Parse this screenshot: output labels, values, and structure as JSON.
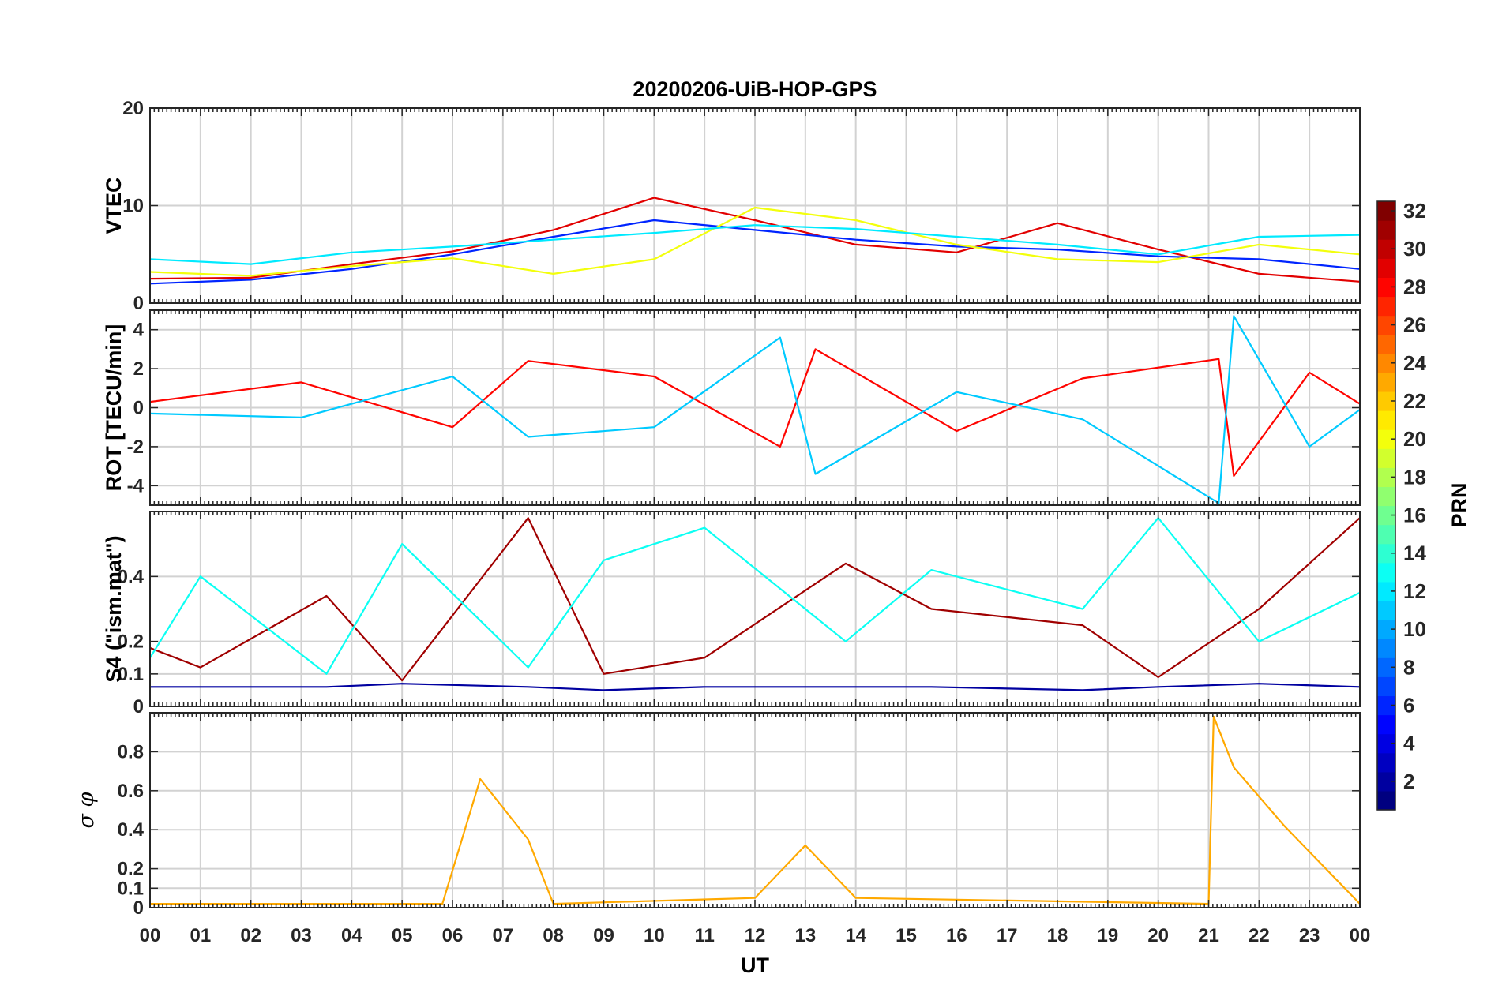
{
  "chart_data": {
    "type": "line",
    "title": "20200206-UiB-HOP-GPS",
    "xlabel": "UT",
    "x_range": [
      0,
      24
    ],
    "x_tick_labels": [
      "00",
      "01",
      "02",
      "03",
      "04",
      "05",
      "06",
      "07",
      "08",
      "09",
      "10",
      "11",
      "12",
      "13",
      "14",
      "15",
      "16",
      "17",
      "18",
      "19",
      "20",
      "21",
      "22",
      "23",
      "00"
    ],
    "colorbar": {
      "label": "PRN",
      "range": [
        1,
        32
      ],
      "tick_labels": [
        "2",
        "4",
        "6",
        "8",
        "10",
        "12",
        "14",
        "16",
        "18",
        "20",
        "22",
        "24",
        "26",
        "28",
        "30",
        "32"
      ],
      "colormap": "jet"
    },
    "panels": [
      {
        "name": "VTEC",
        "ylabel": "VTEC",
        "ylim": [
          0,
          20
        ],
        "yticks": [
          0,
          10,
          20
        ],
        "ytick_labels": [
          "0",
          "10",
          "20"
        ],
        "series": [
          {
            "prn": 29,
            "x": [
              0,
              2,
              4,
              6,
              8,
              10,
              12,
              14,
              16,
              18,
              20,
              22,
              24
            ],
            "y": [
              2.5,
              2.6,
              4.0,
              5.3,
              7.5,
              10.8,
              8.5,
              6.0,
              5.2,
              8.2,
              5.5,
              3.0,
              2.2
            ]
          },
          {
            "prn": 6,
            "x": [
              0,
              2,
              4,
              6,
              8,
              10,
              12,
              14,
              16,
              18,
              20,
              22,
              24
            ],
            "y": [
              2.0,
              2.4,
              3.5,
              5.0,
              6.8,
              8.5,
              7.5,
              6.5,
              5.8,
              5.5,
              4.8,
              4.5,
              3.5
            ]
          },
          {
            "prn": 20,
            "x": [
              0,
              2,
              4,
              6,
              8,
              10,
              12,
              14,
              16,
              18,
              20,
              22,
              24
            ],
            "y": [
              3.2,
              2.8,
              3.8,
              4.6,
              3.0,
              4.5,
              9.8,
              8.5,
              6.0,
              4.5,
              4.2,
              6.0,
              5.0
            ]
          },
          {
            "prn": 12,
            "x": [
              0,
              2,
              4,
              6,
              8,
              10,
              12,
              14,
              16,
              18,
              20,
              22,
              24
            ],
            "y": [
              4.5,
              4.0,
              5.2,
              5.8,
              6.5,
              7.2,
              8.0,
              7.6,
              6.8,
              6.0,
              5.0,
              6.8,
              7.0
            ]
          }
        ]
      },
      {
        "name": "ROT",
        "ylabel": "ROT [TECU/min]",
        "ylim": [
          -5,
          5
        ],
        "yticks": [
          -4,
          -2,
          0,
          2,
          4
        ],
        "ytick_labels": [
          "-4",
          "-2",
          "0",
          "2",
          "4"
        ],
        "series": [
          {
            "prn": 28,
            "x": [
              0,
              3,
              6,
              7.5,
              10,
              12.5,
              13.2,
              16,
              18.5,
              21.2,
              21.5,
              23,
              24
            ],
            "y": [
              0.3,
              1.3,
              -1.0,
              2.4,
              1.6,
              -2.0,
              3.0,
              -1.2,
              1.5,
              2.5,
              -3.5,
              1.8,
              0.2
            ]
          },
          {
            "prn": 11,
            "x": [
              0,
              3,
              6,
              7.5,
              10,
              12.5,
              13.2,
              16,
              18.5,
              21.2,
              21.5,
              23,
              24
            ],
            "y": [
              -0.3,
              -0.5,
              1.6,
              -1.5,
              -1.0,
              3.6,
              -3.4,
              0.8,
              -0.6,
              -4.9,
              4.7,
              -2.0,
              -0.1
            ]
          }
        ]
      },
      {
        "name": "S4",
        "ylabel": "S4 (\"ism.mat\")",
        "ylim": [
          0,
          0.6
        ],
        "yticks": [
          0,
          0.1,
          0.2,
          0.4
        ],
        "ytick_labels": [
          "0",
          "0.1",
          "0.2",
          "0.4"
        ],
        "series": [
          {
            "prn": 31,
            "x": [
              0,
              1,
              3.5,
              5,
              7.5,
              9,
              11,
              13.8,
              15.5,
              18.5,
              20,
              22,
              24
            ],
            "y": [
              0.18,
              0.12,
              0.34,
              0.08,
              0.58,
              0.1,
              0.15,
              0.44,
              0.3,
              0.25,
              0.09,
              0.3,
              0.58
            ]
          },
          {
            "prn": 13,
            "x": [
              0,
              1,
              3.5,
              5,
              7.5,
              9,
              11,
              13.8,
              15.5,
              18.5,
              20,
              22,
              24
            ],
            "y": [
              0.15,
              0.4,
              0.1,
              0.5,
              0.12,
              0.45,
              0.55,
              0.2,
              0.42,
              0.3,
              0.58,
              0.2,
              0.35
            ]
          },
          {
            "prn": 2,
            "x": [
              0,
              1,
              3.5,
              5,
              7.5,
              9,
              11,
              13.8,
              15.5,
              18.5,
              20,
              22,
              24
            ],
            "y": [
              0.06,
              0.06,
              0.06,
              0.07,
              0.06,
              0.05,
              0.06,
              0.06,
              0.06,
              0.05,
              0.06,
              0.07,
              0.06
            ]
          }
        ]
      },
      {
        "name": "sigma_phi",
        "ylabel": "σ φ",
        "ylim": [
          0,
          1
        ],
        "yticks": [
          0,
          0.1,
          0.2,
          0.4,
          0.6,
          0.8
        ],
        "ytick_labels": [
          "0",
          "0.1",
          "0.2",
          "0.4",
          "0.6",
          "0.8"
        ],
        "series": [
          {
            "prn": 23,
            "x": [
              0,
              5.8,
              6.55,
              7.5,
              8,
              12,
              13,
              14,
              21,
              21.1,
              21.5,
              22.5,
              24
            ],
            "y": [
              0.02,
              0.02,
              0.66,
              0.35,
              0.02,
              0.05,
              0.32,
              0.05,
              0.02,
              0.98,
              0.72,
              0.42,
              0.02
            ]
          }
        ]
      }
    ]
  }
}
